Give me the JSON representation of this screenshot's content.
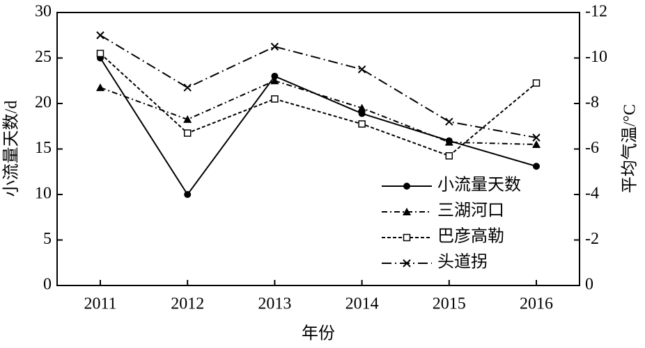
{
  "chart_data": {
    "type": "line",
    "xlabel": "年份",
    "ylabel": "小流量天数/d",
    "y2label": "平均气温/°C",
    "categories": [
      "2011",
      "2012",
      "2013",
      "2014",
      "2015",
      "2016"
    ],
    "ylim": [
      0,
      30
    ],
    "yticks": [
      0,
      5,
      10,
      15,
      20,
      25,
      30
    ],
    "y2lim": [
      0,
      -12
    ],
    "y2ticks": [
      0,
      -2,
      -4,
      -6,
      -8,
      -10,
      -12
    ],
    "legend": "lower right",
    "series": [
      {
        "name": "小流量天数",
        "color": "#000000",
        "line_style": "solid",
        "marker": "circle",
        "values": [
          25,
          10,
          23,
          18.9,
          15.9,
          13.1
        ]
      },
      {
        "name": "三湖河口",
        "color": "#000000",
        "line_style": "dashdot",
        "marker": "triangle",
        "axis": "y2",
        "values": [
          -8.7,
          -7.3,
          -9.0,
          -7.8,
          -6.3,
          -6.2
        ]
      },
      {
        "name": "巴彦高勒",
        "color": "#000000",
        "line_style": "dashed",
        "marker": "square",
        "axis": "y2",
        "values": [
          -10.2,
          -6.7,
          -8.2,
          -7.1,
          -5.7,
          -8.9
        ]
      },
      {
        "name": "头道拐",
        "color": "#000000",
        "line_style": "longdashdot",
        "marker": "x",
        "axis": "y2",
        "values": [
          -11.0,
          -8.7,
          -10.5,
          -9.5,
          -7.2,
          -6.5
        ]
      }
    ]
  }
}
